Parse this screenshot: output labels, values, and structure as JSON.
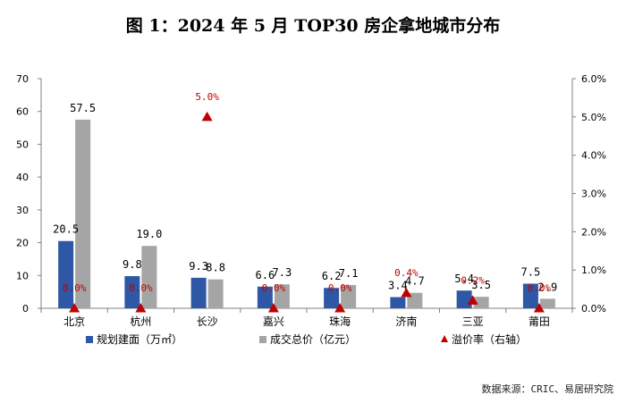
{
  "chart_data": {
    "type": "bar",
    "title": "图 1：2024 年 5 月 TOP30 房企拿地城市分布",
    "categories": [
      "北京",
      "杭州",
      "长沙",
      "嘉兴",
      "珠海",
      "济南",
      "三亚",
      "莆田"
    ],
    "series": [
      {
        "name": "规划建面（万㎡）",
        "axis": "left",
        "kind": "bar",
        "color": "#2E57A6",
        "values": [
          20.5,
          9.8,
          9.3,
          6.6,
          6.2,
          3.4,
          5.4,
          7.5
        ],
        "labels": [
          "20.5",
          "9.8",
          "9.3",
          "6.6",
          "6.2",
          "3.4",
          "5.4",
          "7.5"
        ]
      },
      {
        "name": "成交总价（亿元）",
        "axis": "left",
        "kind": "bar",
        "color": "#A5A5A5",
        "values": [
          57.5,
          19.0,
          8.8,
          7.3,
          7.1,
          4.7,
          3.5,
          2.9
        ],
        "labels": [
          "57.5",
          "19.0",
          "8.8",
          "7.3",
          "7.1",
          "4.7",
          "3.5",
          "2.9"
        ]
      },
      {
        "name": "溢价率（右轴）",
        "axis": "right",
        "kind": "marker",
        "color": "#C00000",
        "values": [
          0.0,
          0.0,
          5.0,
          0.0,
          0.0,
          0.4,
          0.2,
          0.0
        ],
        "labels": [
          "0.0%",
          "0.0%",
          "5.0%",
          "0.0%",
          "0.0%",
          "0.4%",
          "0.2%",
          "0.0%"
        ]
      }
    ],
    "y_left": {
      "min": 0,
      "max": 70,
      "ticks": [
        "0",
        "10",
        "20",
        "30",
        "40",
        "50",
        "60",
        "70"
      ]
    },
    "y_right": {
      "min": 0,
      "max": 6,
      "ticks": [
        "0.0%",
        "1.0%",
        "2.0%",
        "3.0%",
        "4.0%",
        "5.0%",
        "6.0%"
      ]
    },
    "legend_position": "bottom",
    "grid": false
  },
  "source": "数据来源：CRIC、易居研究院"
}
